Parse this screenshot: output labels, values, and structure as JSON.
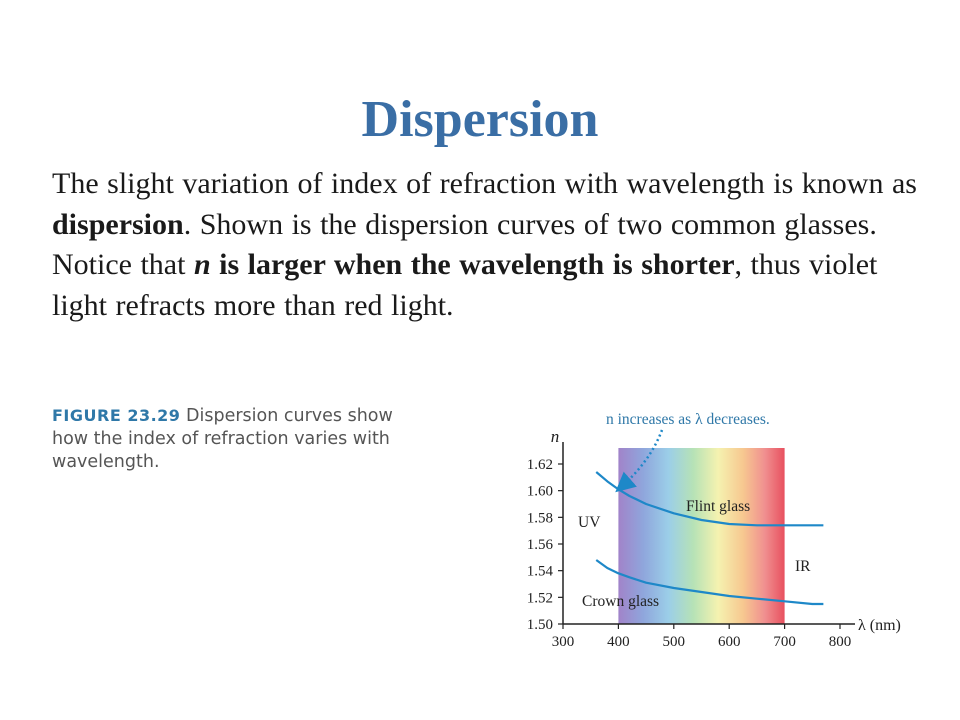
{
  "slide": {
    "title": "Dispersion",
    "paragraph": {
      "p1": "The slight variation of index of refraction with wavelength is known as ",
      "p2": "dispersion",
      "p3": ". Shown is the dispersion curves of two common glasses. Notice that ",
      "p4": "n",
      "p5": " is larger when the wavelength is shorter",
      "p6": ", thus violet light refracts more than red light."
    }
  },
  "caption": {
    "figure_label": "FIGURE 23.29",
    "text": " Dispersion curves show how the index of refraction varies with wavelength."
  },
  "chart_data": {
    "type": "line",
    "xlabel": "λ (nm)",
    "ylabel": "n",
    "xlim": [
      300,
      800
    ],
    "ylim": [
      1.5,
      1.62
    ],
    "x_ticks": [
      "300",
      "400",
      "500",
      "600",
      "700",
      "800"
    ],
    "y_ticks": [
      "1.50",
      "1.52",
      "1.54",
      "1.56",
      "1.58",
      "1.60",
      "1.62"
    ],
    "x_tick_values": [
      300,
      400,
      500,
      600,
      700,
      800
    ],
    "y_tick_values": [
      1.5,
      1.52,
      1.54,
      1.56,
      1.58,
      1.6,
      1.62
    ],
    "visible_band": [
      400,
      700
    ],
    "series": [
      {
        "name": "Flint glass",
        "color": "#1E88C8",
        "x": [
          360,
          380,
          400,
          420,
          450,
          500,
          550,
          600,
          650,
          700,
          750,
          770
        ],
        "y": [
          1.614,
          1.607,
          1.601,
          1.596,
          1.59,
          1.583,
          1.578,
          1.575,
          1.574,
          1.574,
          1.574,
          1.574
        ]
      },
      {
        "name": "Crown glass",
        "color": "#1E88C8",
        "x": [
          360,
          380,
          400,
          420,
          450,
          500,
          550,
          600,
          650,
          700,
          750,
          770
        ],
        "y": [
          1.548,
          1.542,
          1.538,
          1.535,
          1.531,
          1.527,
          1.524,
          1.521,
          1.519,
          1.517,
          1.515,
          1.515
        ]
      }
    ],
    "annotations": {
      "uv": "UV",
      "ir": "IR",
      "arrow_label": "n increases as λ decreases."
    }
  }
}
